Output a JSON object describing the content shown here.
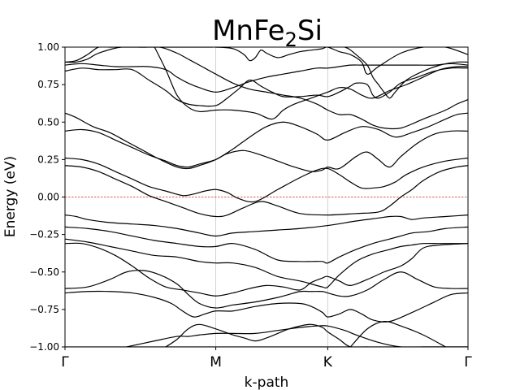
{
  "chart_data": {
    "type": "line",
    "title": "MnFe",
    "title_subscript": "2",
    "title_suffix": "Si",
    "xlabel": "k-path",
    "ylabel": "Energy (eV)",
    "ylim": [
      -1.0,
      1.0
    ],
    "xlim": [
      0,
      3.6
    ],
    "yticks": [
      1.0,
      0.75,
      0.5,
      0.25,
      0.0,
      -0.25,
      -0.5,
      -0.75,
      -1.0
    ],
    "ytick_labels": [
      "1.00",
      "0.75",
      "0.50",
      "0.25",
      "0.00",
      "−0.25",
      "−0.50",
      "−0.75",
      "−1.00"
    ],
    "high_symmetry_points": [
      {
        "label": "Γ",
        "x": 0
      },
      {
        "label": "M",
        "x": 1.347
      },
      {
        "label": "K",
        "x": 2.347
      },
      {
        "label": "Γ",
        "x": 3.6
      }
    ],
    "fermi_level": 0.0,
    "band_color": "#000000",
    "fermi_color": "#d62728",
    "grid": "vertical lines at high-symmetry points",
    "series": [
      {
        "x": [
          0,
          0.2,
          0.4,
          0.6,
          0.8,
          1.0,
          1.2,
          1.347,
          1.6,
          1.9,
          2.1,
          2.347,
          2.6,
          2.9,
          3.2,
          3.6
        ],
        "y": [
          -1.0,
          -1.0,
          -1.0,
          -1.0,
          -1.0,
          -1.0,
          -1.0,
          -1.0,
          -1.0,
          -1.0,
          -1.0,
          -1.0,
          -1.0,
          -1.0,
          -1.0,
          -1.0
        ]
      },
      {
        "x": [
          0.55,
          0.8,
          1.0,
          1.1,
          1.2,
          1.347,
          1.5,
          1.7,
          1.9,
          2.1,
          2.25,
          2.347,
          2.5,
          2.6,
          2.8,
          3.0,
          3.2,
          3.3,
          3.45,
          3.6
        ],
        "y": [
          -1.0,
          -0.96,
          -0.93,
          -0.93,
          -0.92,
          -0.91,
          -0.91,
          -0.91,
          -0.89,
          -0.87,
          -0.86,
          -0.86,
          -0.89,
          -0.92,
          -0.97,
          -1.0,
          -1.0,
          -1.0,
          -1.0,
          -1.0
        ]
      },
      {
        "x": [
          0.9,
          1.0,
          1.1,
          1.2,
          1.347,
          1.5,
          1.6,
          1.7,
          1.8,
          1.9,
          2.0,
          2.1,
          2.2,
          2.3,
          2.347,
          2.45,
          2.55,
          2.7
        ],
        "y": [
          -1.0,
          -0.95,
          -0.88,
          -0.85,
          -0.88,
          -0.92,
          -0.94,
          -0.96,
          -0.94,
          -0.91,
          -0.88,
          -0.86,
          -0.85,
          -0.87,
          -0.9,
          -0.95,
          -1.0,
          -1.0
        ]
      },
      {
        "x": [
          2.55,
          2.7,
          2.85,
          3.0,
          3.2,
          3.4
        ],
        "y": [
          -1.0,
          -0.88,
          -0.83,
          -0.86,
          -0.92,
          -1.0
        ]
      },
      {
        "x": [
          0,
          0.2,
          0.4,
          0.6,
          0.8,
          0.95,
          1.05,
          1.15,
          1.25,
          1.347,
          1.5,
          1.7,
          1.9,
          2.1,
          2.2,
          2.3,
          2.347,
          2.45,
          2.55,
          2.65,
          2.75,
          2.9,
          3.1,
          3.3,
          3.45,
          3.6
        ],
        "y": [
          -0.64,
          -0.63,
          -0.63,
          -0.64,
          -0.67,
          -0.71,
          -0.76,
          -0.8,
          -0.78,
          -0.76,
          -0.76,
          -0.73,
          -0.71,
          -0.71,
          -0.73,
          -0.77,
          -0.8,
          -0.78,
          -0.75,
          -0.78,
          -0.82,
          -0.83,
          -0.77,
          -0.7,
          -0.65,
          -0.64
        ]
      },
      {
        "x": [
          0,
          0.2,
          0.4,
          0.55,
          0.7,
          0.85,
          1.0,
          1.1,
          1.2,
          1.347,
          1.5,
          1.7,
          1.9,
          2.0,
          2.1,
          2.2,
          2.3,
          2.347,
          2.45,
          2.55,
          2.7,
          2.85,
          3.0,
          3.15,
          3.3,
          3.45,
          3.6
        ],
        "y": [
          -0.61,
          -0.6,
          -0.55,
          -0.5,
          -0.49,
          -0.52,
          -0.58,
          -0.65,
          -0.71,
          -0.74,
          -0.72,
          -0.7,
          -0.67,
          -0.65,
          -0.63,
          -0.63,
          -0.63,
          -0.64,
          -0.66,
          -0.66,
          -0.62,
          -0.55,
          -0.5,
          -0.55,
          -0.6,
          -0.61,
          -0.61
        ]
      },
      {
        "x": [
          0,
          0.15,
          0.3,
          0.45,
          0.6,
          0.75,
          0.9,
          1.05,
          1.2,
          1.347,
          1.5,
          1.65,
          1.8,
          1.95,
          2.1,
          2.2,
          2.3,
          2.347,
          2.45,
          2.55,
          2.7,
          2.85,
          3.0,
          3.1,
          3.2,
          3.35,
          3.6
        ],
        "y": [
          -0.31,
          -0.31,
          -0.34,
          -0.39,
          -0.46,
          -0.54,
          -0.6,
          -0.62,
          -0.64,
          -0.66,
          -0.64,
          -0.61,
          -0.59,
          -0.6,
          -0.62,
          -0.57,
          -0.54,
          -0.53,
          -0.56,
          -0.59,
          -0.55,
          -0.5,
          -0.46,
          -0.41,
          -0.34,
          -0.32,
          -0.31
        ]
      },
      {
        "x": [
          0,
          0.2,
          0.4,
          0.6,
          0.8,
          1.0,
          1.2,
          1.347,
          1.5,
          1.7,
          1.9,
          2.1,
          2.2,
          2.3,
          2.347,
          2.45,
          2.6,
          2.75,
          2.9,
          3.0,
          3.1,
          3.2,
          3.35,
          3.6
        ],
        "y": [
          -0.28,
          -0.3,
          -0.33,
          -0.36,
          -0.39,
          -0.4,
          -0.43,
          -0.44,
          -0.44,
          -0.47,
          -0.53,
          -0.56,
          -0.58,
          -0.6,
          -0.6,
          -0.52,
          -0.43,
          -0.38,
          -0.35,
          -0.33,
          -0.32,
          -0.31,
          -0.31,
          -0.31
        ]
      },
      {
        "x": [
          0,
          0.2,
          0.4,
          0.6,
          0.8,
          1.0,
          1.2,
          1.347,
          1.5,
          1.7,
          1.9,
          2.1,
          2.2,
          2.3,
          2.347,
          2.45,
          2.6,
          2.75,
          2.9,
          3.0,
          3.1,
          3.25,
          3.4,
          3.6
        ],
        "y": [
          -0.2,
          -0.21,
          -0.23,
          -0.26,
          -0.29,
          -0.31,
          -0.33,
          -0.33,
          -0.31,
          -0.35,
          -0.42,
          -0.43,
          -0.43,
          -0.43,
          -0.44,
          -0.4,
          -0.35,
          -0.31,
          -0.28,
          -0.26,
          -0.24,
          -0.23,
          -0.21,
          -0.2
        ]
      },
      {
        "x": [
          0,
          0.1,
          0.2,
          0.4,
          0.6,
          0.8,
          1.0,
          1.2,
          1.347,
          1.5,
          1.7,
          1.9,
          2.1,
          2.347,
          2.6,
          2.8,
          2.9,
          3.0,
          3.1,
          3.2,
          3.4,
          3.6
        ],
        "y": [
          -0.12,
          -0.13,
          -0.15,
          -0.17,
          -0.18,
          -0.19,
          -0.21,
          -0.24,
          -0.26,
          -0.24,
          -0.23,
          -0.22,
          -0.21,
          -0.19,
          -0.16,
          -0.14,
          -0.13,
          -0.13,
          -0.15,
          -0.14,
          -0.13,
          -0.12
        ]
      },
      {
        "x": [
          0,
          0.15,
          0.3,
          0.45,
          0.6,
          0.75,
          0.9,
          1.05,
          1.2,
          1.347,
          1.45,
          1.6,
          1.75,
          1.9,
          2.1,
          2.347,
          2.6,
          2.8,
          2.9,
          3.0,
          3.1,
          3.2,
          3.35,
          3.5,
          3.6
        ],
        "y": [
          0.21,
          0.2,
          0.17,
          0.12,
          0.07,
          0.01,
          -0.03,
          -0.07,
          -0.11,
          -0.13,
          -0.12,
          -0.07,
          -0.03,
          -0.06,
          -0.11,
          -0.12,
          -0.11,
          -0.1,
          -0.06,
          0.0,
          0.05,
          0.11,
          0.17,
          0.2,
          0.21
        ]
      },
      {
        "x": [
          0,
          0.15,
          0.3,
          0.45,
          0.6,
          0.75,
          0.9,
          1.05,
          1.15,
          1.25,
          1.347,
          1.45,
          1.55,
          1.7,
          1.9,
          2.1,
          2.25,
          2.347,
          2.45,
          2.55,
          2.65,
          2.75,
          2.85,
          2.95,
          3.05,
          3.2,
          3.4,
          3.6
        ],
        "y": [
          0.26,
          0.25,
          0.22,
          0.17,
          0.12,
          0.07,
          0.04,
          0.01,
          0.02,
          0.04,
          0.05,
          0.03,
          -0.01,
          -0.03,
          0.05,
          0.13,
          0.18,
          0.19,
          0.15,
          0.1,
          0.06,
          0.06,
          0.07,
          0.1,
          0.15,
          0.2,
          0.24,
          0.26
        ]
      },
      {
        "x": [
          0,
          0.15,
          0.3,
          0.45,
          0.6,
          0.75,
          0.9,
          1.0,
          1.1,
          1.2,
          1.347,
          1.45,
          1.6,
          1.75,
          1.9,
          2.05,
          2.2,
          2.3,
          2.347,
          2.45,
          2.6,
          2.7,
          2.8,
          2.9,
          3.0,
          3.15,
          3.3,
          3.45,
          3.6
        ],
        "y": [
          0.44,
          0.45,
          0.43,
          0.38,
          0.33,
          0.28,
          0.24,
          0.21,
          0.2,
          0.22,
          0.25,
          0.29,
          0.31,
          0.28,
          0.24,
          0.2,
          0.17,
          0.18,
          0.2,
          0.19,
          0.27,
          0.3,
          0.25,
          0.2,
          0.27,
          0.36,
          0.42,
          0.44,
          0.44
        ]
      },
      {
        "x": [
          0,
          0.1,
          0.25,
          0.4,
          0.55,
          0.7,
          0.85,
          1.0,
          1.1,
          1.2,
          1.347,
          1.5,
          1.65,
          1.8,
          1.95,
          2.1,
          2.25,
          2.347,
          2.5,
          2.65,
          2.8,
          2.95,
          3.1,
          3.25,
          3.4,
          3.5,
          3.6
        ],
        "y": [
          0.56,
          0.53,
          0.47,
          0.43,
          0.37,
          0.31,
          0.25,
          0.2,
          0.19,
          0.21,
          0.25,
          0.32,
          0.4,
          0.47,
          0.5,
          0.47,
          0.42,
          0.38,
          0.43,
          0.47,
          0.45,
          0.4,
          0.43,
          0.47,
          0.52,
          0.55,
          0.56
        ]
      },
      {
        "x": [
          0.8,
          0.9,
          1.0,
          1.1,
          1.2,
          1.347,
          1.5,
          1.7,
          1.85,
          1.95,
          2.05,
          2.2,
          2.347,
          2.45,
          2.55,
          2.65,
          2.75,
          2.9,
          3.05,
          3.2,
          3.35,
          3.5,
          3.6
        ],
        "y": [
          1.0,
          0.85,
          0.68,
          0.6,
          0.57,
          0.58,
          0.58,
          0.56,
          0.52,
          0.58,
          0.62,
          0.66,
          0.7,
          0.73,
          0.72,
          0.68,
          0.66,
          0.71,
          0.75,
          0.8,
          0.85,
          0.87,
          0.87
        ]
      },
      {
        "x": [
          0,
          0.15,
          0.3,
          0.45,
          0.6,
          0.75,
          0.9,
          1.0,
          1.1,
          1.2,
          1.347,
          1.45,
          1.55,
          1.65,
          1.75,
          1.85,
          1.95,
          2.1,
          2.25,
          2.347,
          2.45,
          2.55,
          2.6,
          2.7,
          2.75,
          2.8,
          2.9,
          3.0,
          3.15,
          3.3,
          3.45,
          3.6
        ],
        "y": [
          0.84,
          0.86,
          0.85,
          0.85,
          0.85,
          0.78,
          0.71,
          0.65,
          0.62,
          0.61,
          0.61,
          0.66,
          0.72,
          0.78,
          0.74,
          0.7,
          0.67,
          0.67,
          0.68,
          0.67,
          0.7,
          0.74,
          0.76,
          0.75,
          0.68,
          0.66,
          0.7,
          0.76,
          0.8,
          0.84,
          0.86,
          0.86
        ]
      },
      {
        "x": [
          0,
          0.15,
          0.3,
          0.45,
          0.6,
          0.75,
          0.9,
          1.0,
          1.1,
          1.2,
          1.347,
          1.5,
          1.65,
          1.8,
          1.95,
          2.1,
          2.25,
          2.347,
          2.45,
          2.55,
          2.65,
          2.75,
          2.85,
          3.0,
          3.15,
          3.3,
          3.45,
          3.6
        ],
        "y": [
          0.88,
          0.89,
          0.88,
          0.87,
          0.87,
          0.87,
          0.85,
          0.8,
          0.76,
          0.73,
          0.7,
          0.73,
          0.77,
          0.8,
          0.82,
          0.84,
          0.86,
          0.86,
          0.87,
          0.88,
          0.88,
          0.88,
          0.88,
          0.88,
          0.88,
          0.88,
          0.89,
          0.88
        ]
      },
      {
        "x": [
          0,
          0.1,
          0.2,
          0.3,
          0.4,
          0.55,
          0.7,
          0.85,
          1.0,
          1.1,
          1.2,
          1.347,
          1.5,
          1.65,
          1.8,
          1.95,
          2.1,
          2.25,
          2.347,
          2.45,
          2.55,
          2.65,
          2.75,
          2.85,
          3.0,
          3.2,
          3.4,
          3.5,
          3.6
        ],
        "y": [
          0.9,
          0.91,
          0.95,
          1.0,
          1.0,
          1.0,
          1.0,
          1.0,
          0.96,
          0.92,
          0.88,
          0.82,
          0.76,
          0.72,
          0.7,
          0.68,
          0.66,
          0.62,
          0.58,
          0.55,
          0.55,
          0.52,
          0.48,
          0.46,
          0.46,
          0.52,
          0.58,
          0.62,
          0.65
        ]
      },
      {
        "x": [
          0,
          0.1,
          0.2,
          0.3,
          0.5,
          0.7,
          0.9,
          1.1,
          1.3,
          1.347,
          1.5,
          1.6,
          1.65,
          1.7,
          1.75,
          1.8,
          1.9,
          2.0,
          2.1,
          2.2,
          2.3,
          2.347,
          2.45,
          2.55,
          2.65,
          2.7,
          2.8,
          3.0,
          3.2,
          3.4,
          3.6
        ],
        "y": [
          0.9,
          0.9,
          0.92,
          0.96,
          1.0,
          1.0,
          1.0,
          1.0,
          1.0,
          1.0,
          0.99,
          0.95,
          0.91,
          0.93,
          0.98,
          0.96,
          0.93,
          0.95,
          0.97,
          0.98,
          0.99,
          1.0,
          0.97,
          0.95,
          0.9,
          0.82,
          0.87,
          0.96,
          1.0,
          1.0,
          0.95
        ]
      },
      {
        "x": [
          2.35,
          2.5,
          2.6,
          2.7,
          2.75,
          2.8,
          2.85,
          2.9,
          2.95,
          3.05,
          3.2,
          3.35,
          3.5,
          3.6
        ],
        "y": [
          1.0,
          1.0,
          0.95,
          0.88,
          0.8,
          0.75,
          0.7,
          0.66,
          0.7,
          0.78,
          0.84,
          0.88,
          0.9,
          0.9
        ]
      }
    ]
  }
}
